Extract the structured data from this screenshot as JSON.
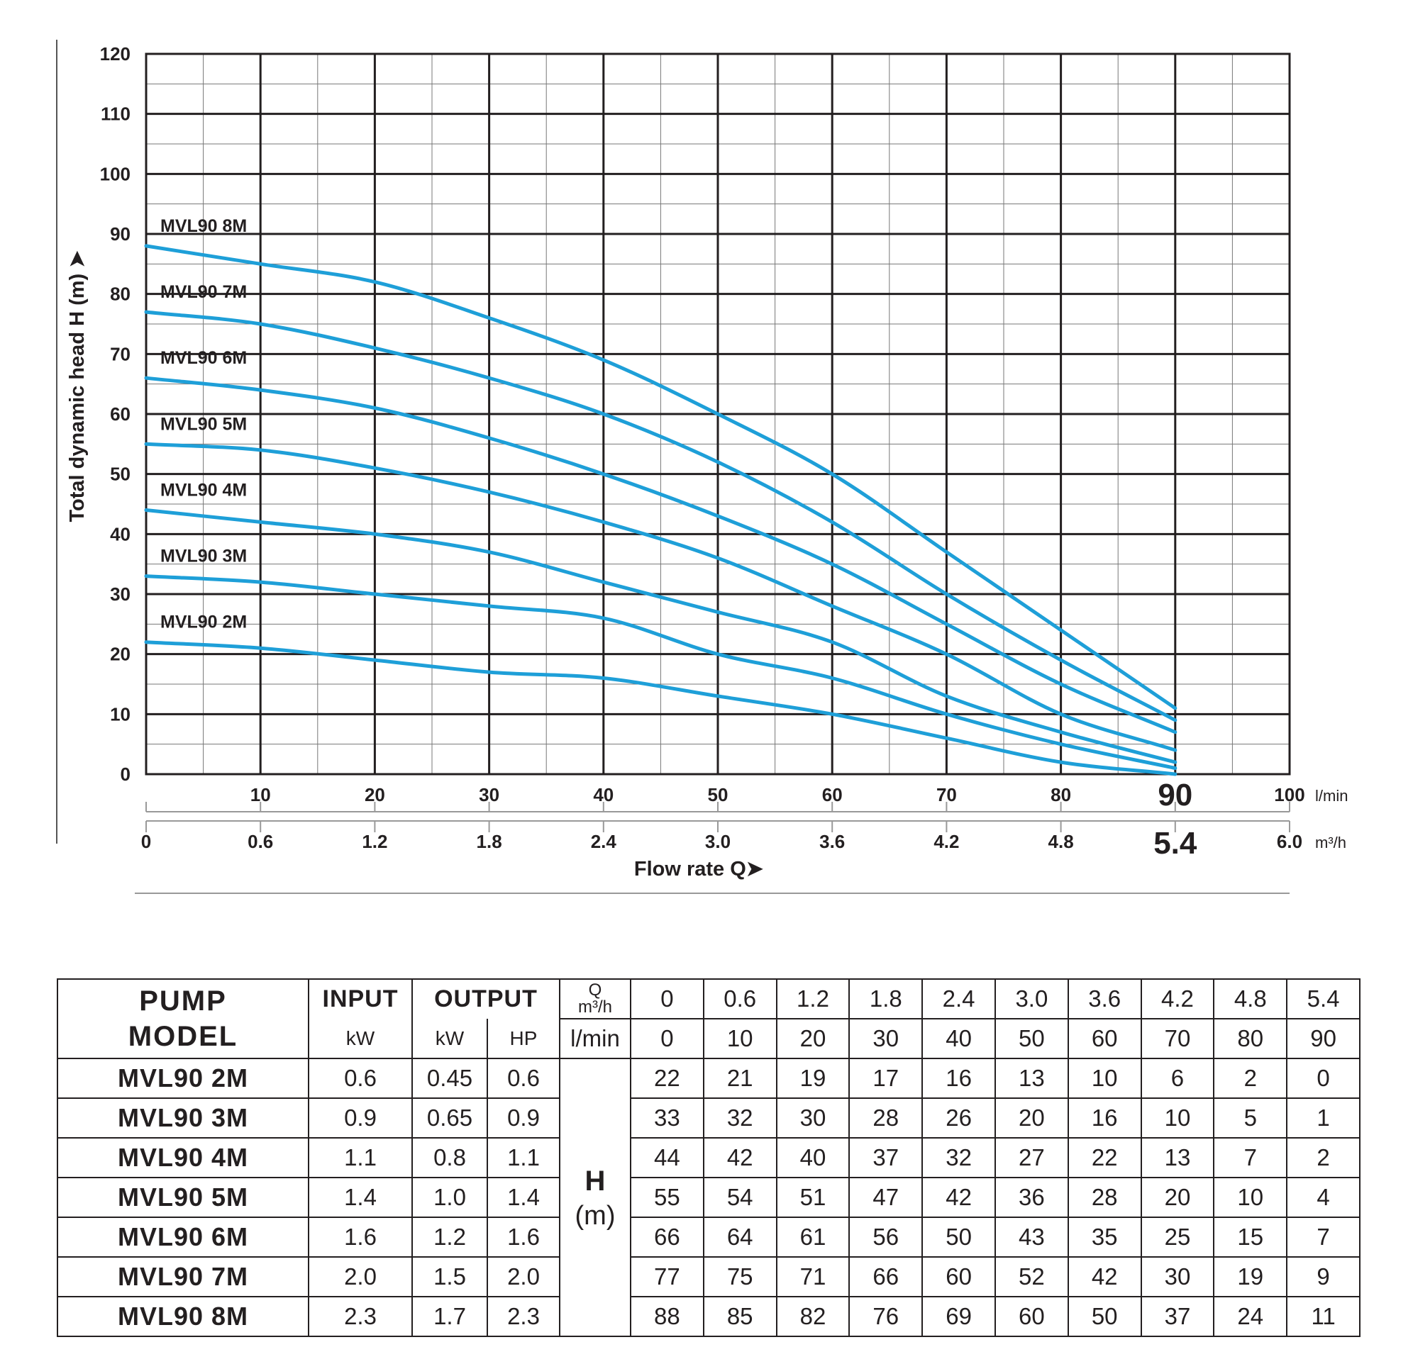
{
  "chart_data": {
    "type": "line",
    "ylabel": "Total dynamic head H (m)",
    "xlabel": "Flow rate Q",
    "ylim": [
      0,
      120
    ],
    "yticks": [
      "0",
      "10",
      "20",
      "30",
      "40",
      "50",
      "60",
      "70",
      "80",
      "90",
      "100",
      "110",
      "120"
    ],
    "x_lmin_ticks": [
      "10",
      "20",
      "30",
      "40",
      "50",
      "60",
      "70",
      "80",
      "90",
      "100"
    ],
    "x_lmin_unit": "l/min",
    "x_m3h_ticks": [
      "0",
      "0.6",
      "1.2",
      "1.8",
      "2.4",
      "3.0",
      "3.6",
      "4.2",
      "4.8",
      "5.4",
      "6.0"
    ],
    "x_m3h_unit": "m³/h",
    "xlim_lmin": [
      0,
      100
    ],
    "highlight_lmin": "90",
    "highlight_m3h": "5.4",
    "grid": true,
    "line_color": "#1e9fd8",
    "x": [
      0,
      10,
      20,
      30,
      40,
      50,
      60,
      70,
      80,
      90
    ],
    "series": [
      {
        "name": "MVL90 2M",
        "values": [
          22,
          21,
          19,
          17,
          16,
          13,
          10,
          6,
          2,
          0
        ]
      },
      {
        "name": "MVL90 3M",
        "values": [
          33,
          32,
          30,
          28,
          26,
          20,
          16,
          10,
          5,
          1
        ]
      },
      {
        "name": "MVL90 4M",
        "values": [
          44,
          42,
          40,
          37,
          32,
          27,
          22,
          13,
          7,
          2
        ]
      },
      {
        "name": "MVL90 5M",
        "values": [
          55,
          54,
          51,
          47,
          42,
          36,
          28,
          20,
          10,
          4
        ]
      },
      {
        "name": "MVL90 6M",
        "values": [
          66,
          64,
          61,
          56,
          50,
          43,
          35,
          25,
          15,
          7
        ]
      },
      {
        "name": "MVL90 7M",
        "values": [
          77,
          75,
          71,
          66,
          60,
          52,
          42,
          30,
          19,
          9
        ]
      },
      {
        "name": "MVL90 8M",
        "values": [
          88,
          85,
          82,
          76,
          69,
          60,
          50,
          37,
          24,
          11
        ]
      }
    ]
  },
  "table": {
    "pump_model_line1": "PUMP",
    "pump_model_line2": "MODEL",
    "input_label": "INPUT",
    "output_label": "OUTPUT",
    "q_label": "Q",
    "q_unit": "m³/h",
    "lmin_label": "l/min",
    "kw_label": "kW",
    "hp_label": "HP",
    "h_label": "H",
    "h_unit": "(m)",
    "q_values": [
      "0",
      "0.6",
      "1.2",
      "1.8",
      "2.4",
      "3.0",
      "3.6",
      "4.2",
      "4.8",
      "5.4"
    ],
    "lmin_values": [
      "0",
      "10",
      "20",
      "30",
      "40",
      "50",
      "60",
      "70",
      "80",
      "90"
    ],
    "rows": [
      {
        "model": "MVL90 2M",
        "input_kw": "0.6",
        "output_kw": "0.45",
        "output_hp": "0.6",
        "h": [
          "22",
          "21",
          "19",
          "17",
          "16",
          "13",
          "10",
          "6",
          "2",
          "0"
        ]
      },
      {
        "model": "MVL90 3M",
        "input_kw": "0.9",
        "output_kw": "0.65",
        "output_hp": "0.9",
        "h": [
          "33",
          "32",
          "30",
          "28",
          "26",
          "20",
          "16",
          "10",
          "5",
          "1"
        ]
      },
      {
        "model": "MVL90 4M",
        "input_kw": "1.1",
        "output_kw": "0.8",
        "output_hp": "1.1",
        "h": [
          "44",
          "42",
          "40",
          "37",
          "32",
          "27",
          "22",
          "13",
          "7",
          "2"
        ]
      },
      {
        "model": "MVL90 5M",
        "input_kw": "1.4",
        "output_kw": "1.0",
        "output_hp": "1.4",
        "h": [
          "55",
          "54",
          "51",
          "47",
          "42",
          "36",
          "28",
          "20",
          "10",
          "4"
        ]
      },
      {
        "model": "MVL90 6M",
        "input_kw": "1.6",
        "output_kw": "1.2",
        "output_hp": "1.6",
        "h": [
          "66",
          "64",
          "61",
          "56",
          "50",
          "43",
          "35",
          "25",
          "15",
          "7"
        ]
      },
      {
        "model": "MVL90 7M",
        "input_kw": "2.0",
        "output_kw": "1.5",
        "output_hp": "2.0",
        "h": [
          "77",
          "75",
          "71",
          "66",
          "60",
          "52",
          "42",
          "30",
          "19",
          "9"
        ]
      },
      {
        "model": "MVL90 8M",
        "input_kw": "2.3",
        "output_kw": "1.7",
        "output_hp": "2.3",
        "h": [
          "88",
          "85",
          "82",
          "76",
          "69",
          "60",
          "50",
          "37",
          "24",
          "11"
        ]
      }
    ]
  }
}
